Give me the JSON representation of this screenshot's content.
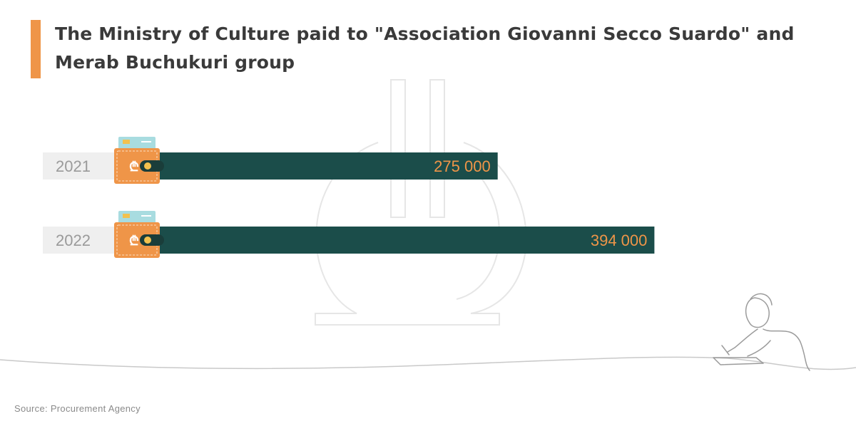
{
  "title": {
    "line1": "The Ministry of Culture paid to \"Association  Giovanni Secco Suardo\" and",
    "line2": "Merab Buchukuri group"
  },
  "source": "Source: Procurement Agency",
  "colors": {
    "accent": "#EF9548",
    "bar": "#1B4D4A",
    "label_bg": "#EFEFEF",
    "value_text": "#EF9548",
    "year_text": "#9A9A9A"
  },
  "icons": [
    "wallet-icon",
    "lari-sign-icon",
    "lari-watermark-icon",
    "person-writing-illustration"
  ],
  "chart_data": {
    "type": "bar",
    "orientation": "horizontal",
    "categories": [
      "2021",
      "2022"
    ],
    "values": [
      275000,
      394000
    ],
    "value_labels": [
      "275 000",
      "394 000"
    ],
    "title": "The Ministry of Culture paid to \"Association  Giovanni Secco Suardo\" and Merab Buchukuri group",
    "xlim": [
      0,
      520000
    ],
    "grid": false,
    "legend": "none"
  }
}
